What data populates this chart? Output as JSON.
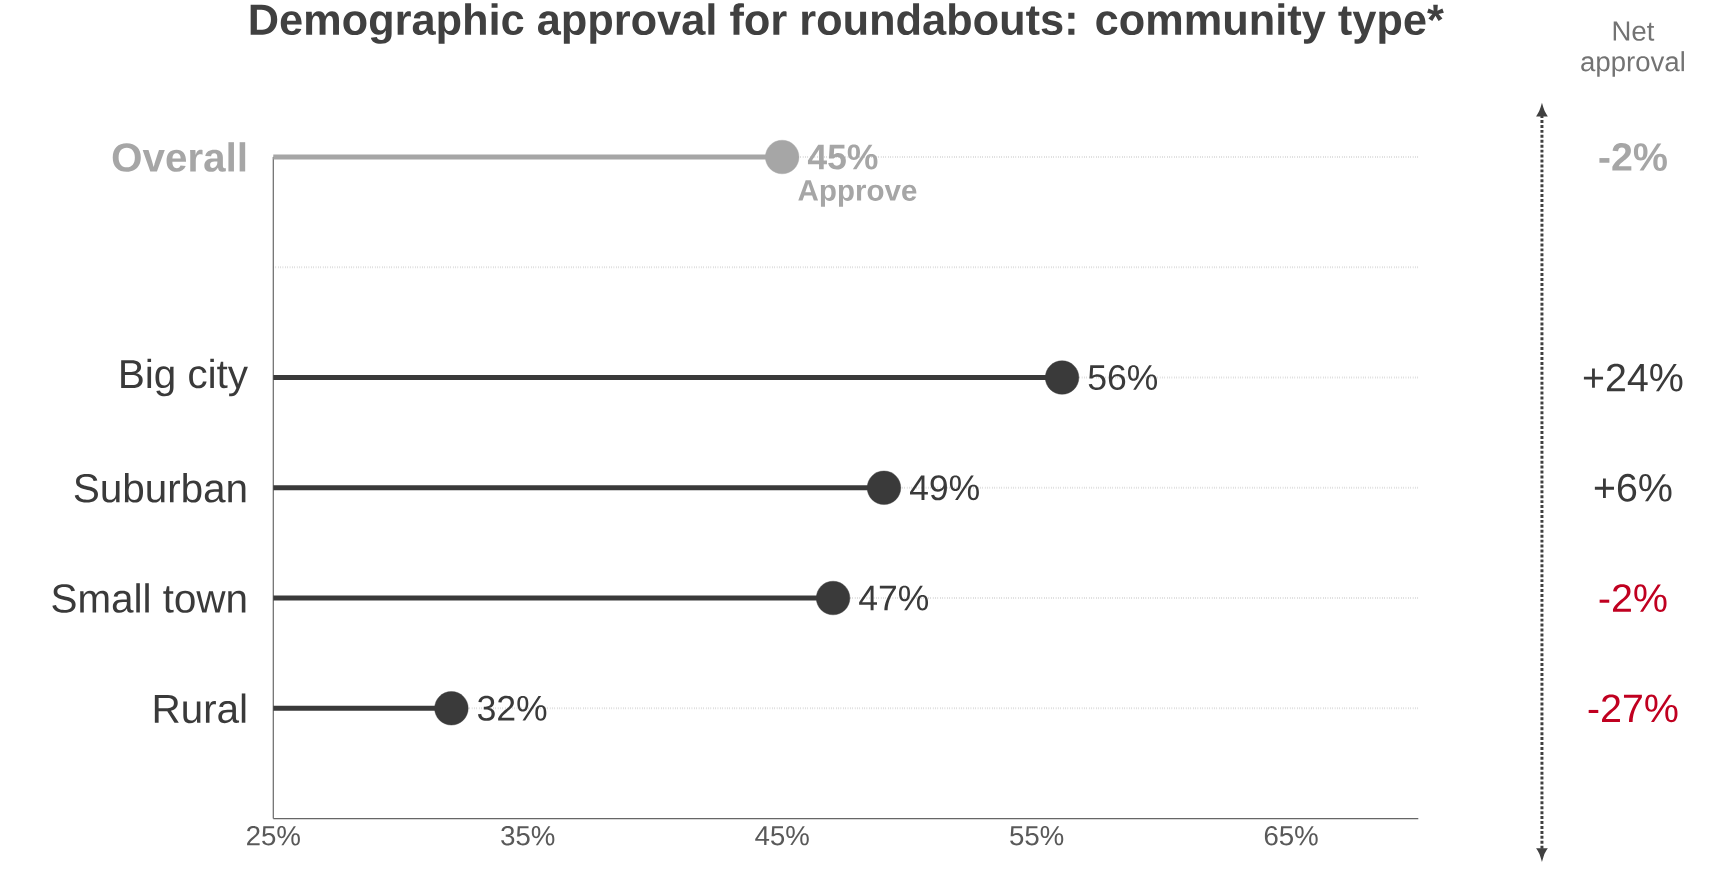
{
  "chart_data": {
    "type": "lollipop",
    "title": "Demographic approval for roundabouts: community type*",
    "categories": [
      "Overall",
      null,
      "Big city",
      "Suburban",
      "Small town",
      "Rural"
    ],
    "values": [
      45,
      null,
      56,
      49,
      47,
      32
    ],
    "colors": [
      "#a6a6a6",
      "#3a3a3a",
      "#3a3a3a",
      "#3a3a3a",
      "#3a3a3a",
      "#3a3a3a"
    ],
    "value_labels": [
      "45%",
      null,
      "56%",
      "49%",
      "47%",
      "32%"
    ],
    "orientation": "horizontal",
    "xlim": [
      25,
      70
    ],
    "xticks": [
      {
        "value": 25,
        "label": "25%"
      },
      {
        "value": 35,
        "label": "35%"
      },
      {
        "value": 45,
        "label": "45%"
      },
      {
        "value": 55,
        "label": "55%"
      },
      {
        "value": 65,
        "label": "65%"
      }
    ],
    "grid": "y",
    "annotations": [
      {
        "text": "Approve",
        "x": 45,
        "y": "Overall"
      },
      "Net approval",
      "-2%",
      "+24%",
      "+6%",
      "-2%",
      "-27%"
    ]
  }
}
